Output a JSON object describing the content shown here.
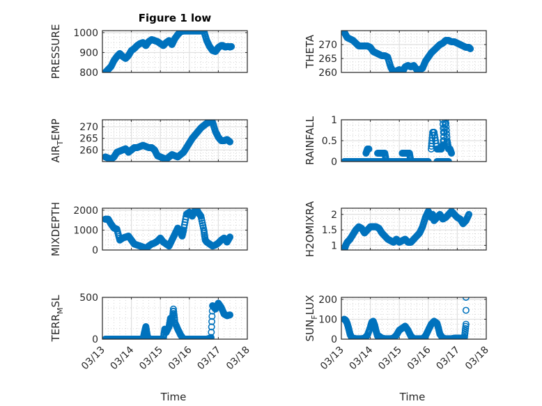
{
  "figure": {
    "title": "Figure 1 low",
    "marker_color": "#0072BD",
    "grid_color": "#dfdfdf",
    "axis_color": "#262626"
  },
  "chart_data": [
    {
      "type": "scatter",
      "id": "pressure",
      "title": "Figure 1 low",
      "ylabel": "PRESSURE",
      "ylabel_sub": null,
      "xlabel": "",
      "xlim": [
        0,
        5
      ],
      "ylim": [
        800,
        1010
      ],
      "yticks": [
        800,
        900,
        1000
      ],
      "ytick_labels": [
        "800",
        "900",
        "1000"
      ],
      "xticks_shown": false,
      "grid": true,
      "x": [
        0.1,
        0.2,
        0.3,
        0.4,
        0.5,
        0.6,
        0.7,
        0.8,
        0.9,
        1.0,
        1.1,
        1.2,
        1.3,
        1.4,
        1.5,
        1.6,
        1.7,
        1.8,
        1.9,
        2.0,
        2.1,
        2.2,
        2.3,
        2.4,
        2.5,
        2.6,
        2.7,
        2.8,
        2.9,
        3.0,
        3.1,
        3.2,
        3.3,
        3.4,
        3.5,
        3.6,
        3.7,
        3.8,
        3.9,
        3.95,
        4.0,
        4.05,
        4.1,
        4.15,
        4.2,
        4.25,
        4.3,
        4.35,
        4.4,
        4.45
      ],
      "y": [
        800,
        815,
        830,
        860,
        880,
        895,
        880,
        870,
        885,
        910,
        920,
        935,
        945,
        950,
        935,
        955,
        965,
        960,
        955,
        945,
        935,
        950,
        960,
        940,
        970,
        990,
        1005,
        1008,
        1008,
        1008,
        1008,
        1008,
        1008,
        1008,
        1008,
        960,
        930,
        910,
        905,
        915,
        925,
        930,
        935,
        935,
        930,
        928,
        930,
        930,
        928,
        930
      ]
    },
    {
      "type": "scatter",
      "id": "theta",
      "ylabel": "THETA",
      "ylabel_sub": null,
      "xlabel": "",
      "xlim": [
        0,
        5
      ],
      "ylim": [
        260,
        275
      ],
      "yticks": [
        260,
        265,
        270
      ],
      "ytick_labels": [
        "260",
        "265",
        "270"
      ],
      "xticks_shown": false,
      "grid": true,
      "x": [
        0.1,
        0.15,
        0.2,
        0.3,
        0.4,
        0.5,
        0.6,
        0.7,
        0.8,
        0.9,
        1.0,
        1.1,
        1.2,
        1.3,
        1.4,
        1.5,
        1.6,
        1.7,
        1.8,
        1.9,
        2.0,
        2.1,
        2.2,
        2.3,
        2.4,
        2.5,
        2.6,
        2.7,
        2.8,
        2.9,
        3.0,
        3.1,
        3.2,
        3.3,
        3.4,
        3.5,
        3.6,
        3.7,
        3.8,
        3.9,
        4.0,
        4.1,
        4.2,
        4.3,
        4.4,
        4.45
      ],
      "y": [
        274.5,
        273.5,
        272.5,
        272,
        271.5,
        270.5,
        269.5,
        269.5,
        269.5,
        269.5,
        269,
        267.5,
        267,
        266.5,
        266,
        266,
        265.5,
        262,
        260,
        260.5,
        261,
        260,
        262,
        262.5,
        262,
        262.5,
        261,
        261,
        261.5,
        264,
        265.5,
        267,
        268,
        269,
        270,
        270.5,
        271.5,
        271.5,
        271,
        271,
        270.5,
        270,
        269.5,
        269,
        269,
        268.5
      ]
    },
    {
      "type": "scatter",
      "id": "air-temp",
      "ylabel": "AIR",
      "ylabel_sub": "T",
      "ylabel_rest": "EMP",
      "xlabel": "",
      "xlim": [
        0,
        5
      ],
      "ylim": [
        255,
        273
      ],
      "yticks": [
        260,
        265,
        270
      ],
      "ytick_labels": [
        "260",
        "265",
        "270"
      ],
      "xticks_shown": false,
      "grid": true,
      "x": [
        0.1,
        0.2,
        0.3,
        0.4,
        0.5,
        0.6,
        0.7,
        0.8,
        0.9,
        1.0,
        1.1,
        1.2,
        1.3,
        1.4,
        1.5,
        1.6,
        1.7,
        1.8,
        1.9,
        2.0,
        2.1,
        2.2,
        2.3,
        2.4,
        2.5,
        2.6,
        2.7,
        2.8,
        2.9,
        3.0,
        3.1,
        3.2,
        3.3,
        3.4,
        3.5,
        3.6,
        3.7,
        3.75,
        3.8,
        3.9,
        4.0,
        4.1,
        4.2,
        4.3,
        4.4
      ],
      "y": [
        257,
        256.5,
        256,
        257,
        259,
        259.5,
        260,
        260.5,
        259,
        260,
        261,
        261,
        261.5,
        262,
        261.5,
        261,
        261,
        260,
        257.5,
        257,
        256.5,
        256,
        257,
        258,
        257.5,
        257,
        258,
        259,
        261,
        263,
        265,
        266.5,
        268,
        269.5,
        270.5,
        271.5,
        272,
        272,
        272,
        268,
        265.5,
        264,
        264,
        264.5,
        263.5
      ]
    },
    {
      "type": "scatter",
      "id": "rainfall",
      "ylabel": "RAINFALL",
      "ylabel_sub": null,
      "xlabel": "",
      "xlim": [
        0,
        5
      ],
      "ylim": [
        0,
        1
      ],
      "yticks": [
        0,
        0.5,
        1
      ],
      "ytick_labels": [
        "0",
        "0.5",
        "1"
      ],
      "xticks_shown": false,
      "grid": true,
      "x": [
        0.1,
        0.2,
        0.3,
        0.4,
        0.5,
        0.6,
        0.7,
        0.8,
        1.0,
        1.1,
        1.2,
        1.3,
        1.4,
        1.5,
        1.6,
        1.7,
        1.8,
        1.9,
        2.0,
        2.1,
        2.2,
        2.3,
        2.4,
        2.5,
        2.6,
        2.7,
        2.8,
        2.9,
        3.0,
        3.3,
        3.4,
        3.5,
        3.6,
        3.7,
        0.85,
        0.9,
        0.95,
        1.25,
        1.35,
        1.5,
        1.55,
        1.6,
        2.1,
        2.2,
        2.3,
        2.35,
        2.4,
        3.1,
        3.15,
        3.2,
        3.3,
        3.35,
        3.4,
        3.45,
        3.5,
        3.6,
        3.65,
        3.7,
        3.75,
        3.8,
        3.5,
        3.55
      ],
      "y": [
        0,
        0,
        0,
        0,
        0,
        0,
        0,
        0,
        0,
        0,
        0,
        0,
        0,
        0,
        0,
        0,
        0,
        0,
        0,
        0,
        0,
        0,
        0,
        0,
        0,
        0,
        0,
        0,
        0,
        0,
        0,
        0,
        0,
        0,
        0.2,
        0.3,
        0.3,
        0.2,
        0.2,
        0.2,
        0,
        0,
        0.2,
        0.2,
        0.2,
        0.2,
        0,
        0.3,
        0.7,
        0.7,
        0.3,
        0.3,
        0.3,
        0.3,
        0.4,
        1.0,
        0.5,
        0.3,
        0.3,
        0.2,
        1.0,
        0.4
      ]
    },
    {
      "type": "scatter",
      "id": "mixdepth",
      "ylabel": "MIXDEPTH",
      "ylabel_sub": null,
      "xlabel": "",
      "xlim": [
        0,
        5
      ],
      "ylim": [
        0,
        2100
      ],
      "yticks": [
        0,
        1000,
        2000
      ],
      "ytick_labels": [
        "0",
        "1000",
        "2000"
      ],
      "xticks_shown": false,
      "grid": true,
      "x": [
        0.1,
        0.2,
        0.3,
        0.4,
        0.5,
        0.6,
        0.7,
        0.8,
        0.9,
        1.0,
        1.1,
        1.2,
        1.3,
        1.4,
        1.5,
        1.6,
        1.7,
        1.8,
        1.9,
        2.0,
        2.1,
        2.2,
        2.3,
        2.4,
        2.5,
        2.6,
        2.7,
        2.75,
        2.8,
        2.9,
        3.0,
        3.1,
        3.2,
        3.25,
        3.3,
        3.4,
        3.5,
        3.55,
        3.6,
        3.7,
        3.8,
        3.9,
        4.0,
        4.1,
        4.2,
        4.3,
        4.4
      ],
      "y": [
        1550,
        1550,
        1300,
        1100,
        1050,
        500,
        600,
        650,
        700,
        500,
        300,
        250,
        200,
        150,
        80,
        200,
        300,
        350,
        450,
        600,
        400,
        300,
        200,
        500,
        800,
        1100,
        900,
        700,
        1000,
        1800,
        1900,
        1700,
        2000,
        2050,
        1900,
        1700,
        1000,
        500,
        400,
        300,
        200,
        250,
        350,
        500,
        600,
        400,
        650
      ]
    },
    {
      "type": "scatter",
      "id": "h2omixra",
      "ylabel": "H2OMIXRA",
      "ylabel_sub": null,
      "xlabel": "",
      "xlim": [
        0,
        5
      ],
      "ylim": [
        0.85,
        2.2
      ],
      "yticks": [
        1,
        1.5,
        2
      ],
      "ytick_labels": [
        "1",
        "1.5",
        "2"
      ],
      "xticks_shown": false,
      "grid": true,
      "x": [
        0.1,
        0.15,
        0.2,
        0.3,
        0.4,
        0.5,
        0.6,
        0.7,
        0.8,
        0.9,
        1.0,
        1.1,
        1.2,
        1.3,
        1.4,
        1.5,
        1.6,
        1.7,
        1.8,
        1.9,
        2.0,
        2.1,
        2.2,
        2.3,
        2.4,
        2.5,
        2.6,
        2.7,
        2.8,
        2.9,
        3.0,
        3.05,
        3.1,
        3.15,
        3.2,
        3.3,
        3.4,
        3.5,
        3.6,
        3.7,
        3.8,
        3.9,
        4.0,
        4.1,
        4.2,
        4.3,
        4.4
      ],
      "y": [
        0.85,
        1.0,
        1.1,
        1.2,
        1.35,
        1.5,
        1.6,
        1.55,
        1.4,
        1.5,
        1.6,
        1.6,
        1.6,
        1.55,
        1.4,
        1.3,
        1.2,
        1.15,
        1.1,
        1.2,
        1.1,
        1.15,
        1.2,
        1.1,
        1.1,
        1.2,
        1.3,
        1.4,
        1.6,
        1.9,
        2.1,
        2.0,
        1.9,
        2.0,
        1.8,
        1.9,
        2.0,
        1.85,
        1.9,
        2.0,
        2.1,
        2.0,
        1.9,
        1.85,
        1.7,
        1.8,
        2.0
      ]
    },
    {
      "type": "scatter",
      "id": "terr-msl",
      "ylabel": "TERR",
      "ylabel_sub": "M",
      "ylabel_rest": "SL",
      "xlabel": "Time",
      "xlim": [
        0,
        5
      ],
      "ylim": [
        0,
        500
      ],
      "yticks": [
        0,
        500
      ],
      "ytick_labels": [
        "0",
        "500"
      ],
      "xticks": [
        0,
        1,
        2,
        3,
        4,
        5
      ],
      "xtick_labels": [
        "03/13",
        "03/14",
        "03/15",
        "03/16",
        "03/17",
        "03/18"
      ],
      "xticks_shown": true,
      "grid": true,
      "x": [
        0.1,
        0.2,
        0.3,
        0.4,
        0.5,
        0.6,
        0.7,
        0.8,
        0.9,
        1.0,
        1.1,
        1.2,
        1.3,
        1.4,
        1.45,
        1.5,
        1.55,
        1.6,
        1.7,
        1.8,
        1.9,
        2.0,
        2.1,
        2.15,
        2.2,
        2.3,
        2.35,
        2.4,
        2.45,
        2.5,
        2.6,
        2.7,
        2.8,
        2.9,
        3.0,
        3.1,
        3.2,
        3.3,
        3.4,
        3.5,
        3.6,
        3.7,
        3.75,
        3.8,
        3.9,
        4.0,
        4.1,
        4.2,
        4.3,
        4.4
      ],
      "y": [
        0,
        0,
        0,
        0,
        0,
        0,
        0,
        0,
        0,
        0,
        0,
        0,
        0,
        0,
        80,
        150,
        40,
        0,
        0,
        0,
        0,
        0,
        0,
        120,
        80,
        150,
        250,
        200,
        360,
        200,
        120,
        50,
        0,
        0,
        0,
        0,
        0,
        0,
        0,
        0,
        0,
        10,
        20,
        400,
        360,
        430,
        380,
        300,
        280,
        290
      ]
    },
    {
      "type": "scatter",
      "id": "sun-flux",
      "ylabel": "SUN",
      "ylabel_sub": "F",
      "ylabel_rest": "LUX",
      "xlabel": "Time",
      "xlim": [
        0,
        5
      ],
      "ylim": [
        0,
        210
      ],
      "yticks": [
        0,
        100,
        200
      ],
      "ytick_labels": [
        "0",
        "100",
        "200"
      ],
      "xticks": [
        0,
        1,
        2,
        3,
        4,
        5
      ],
      "xtick_labels": [
        "03/13",
        "03/14",
        "03/15",
        "03/16",
        "03/17",
        "03/18"
      ],
      "xticks_shown": true,
      "grid": true,
      "x": [
        0.1,
        0.15,
        0.2,
        0.25,
        0.3,
        0.35,
        0.4,
        0.5,
        0.6,
        0.7,
        0.8,
        0.9,
        1.0,
        1.05,
        1.1,
        1.15,
        1.2,
        1.25,
        1.3,
        1.4,
        1.5,
        1.6,
        1.7,
        1.8,
        1.9,
        2.0,
        2.1,
        2.2,
        2.3,
        2.4,
        2.5,
        2.6,
        2.7,
        2.8,
        2.9,
        3.0,
        3.1,
        3.2,
        3.3,
        3.35,
        3.4,
        3.5,
        3.6,
        3.7,
        3.8,
        3.9,
        4.0,
        4.1,
        4.2,
        4.25,
        4.3,
        4.3,
        4.3
      ],
      "y": [
        100,
        95,
        80,
        55,
        25,
        10,
        5,
        2,
        2,
        2,
        5,
        20,
        60,
        85,
        90,
        70,
        40,
        15,
        15,
        5,
        2,
        2,
        2,
        5,
        20,
        45,
        55,
        65,
        45,
        15,
        2,
        2,
        2,
        2,
        15,
        45,
        75,
        90,
        80,
        55,
        25,
        5,
        2,
        2,
        2,
        5,
        5,
        5,
        5,
        10,
        75,
        145,
        210
      ]
    }
  ]
}
